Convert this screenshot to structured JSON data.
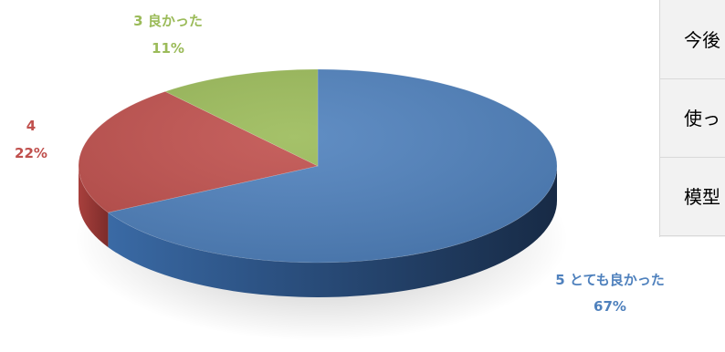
{
  "chart_data": {
    "type": "pie",
    "style": "3d",
    "slices": [
      {
        "label": "5 とても良かった",
        "value": 67,
        "percent_label": "67%",
        "color": "#4f81bd",
        "label_color": "#4f81bd"
      },
      {
        "label": "4",
        "value": 22,
        "percent_label": "22%",
        "color": "#c0504d",
        "label_color": "#c0504d"
      },
      {
        "label": "3 良かった",
        "value": 11,
        "percent_label": "11%",
        "color": "#9bbb59",
        "label_color": "#9bbb59"
      }
    ]
  },
  "side_panel": {
    "rows": [
      {
        "text": "今後"
      },
      {
        "text": "使っ"
      },
      {
        "text": "模型"
      }
    ]
  }
}
